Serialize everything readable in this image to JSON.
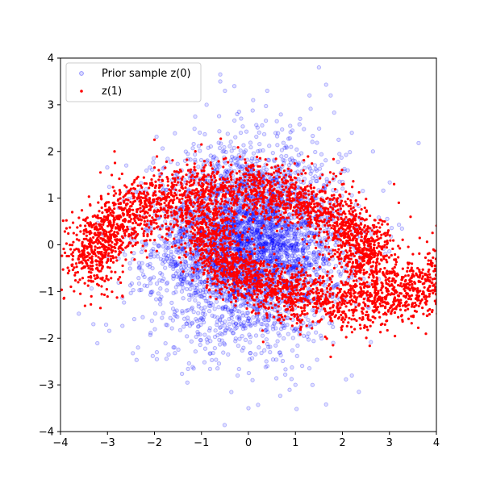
{
  "chart_data": {
    "type": "scatter",
    "title": "",
    "xlabel": "",
    "ylabel": "",
    "xlim": [
      -4,
      4
    ],
    "ylim": [
      -4,
      4
    ],
    "xticks": [
      -4,
      -3,
      -2,
      -1,
      0,
      1,
      2,
      3,
      4
    ],
    "yticks": [
      -4,
      -3,
      -2,
      -1,
      0,
      1,
      2,
      3,
      4
    ],
    "grid": false,
    "legend_position": "upper-left",
    "series": [
      {
        "name": "Prior sample z(0)",
        "color": "#0000ff",
        "marker": "hollow-circle",
        "distribution": "2D standard normal, approx 5000 points, centered at (0, 0)",
        "points": [
          [
            -1.95,
            -2.3
          ],
          [
            -2.6,
            1.7
          ],
          [
            -3.3,
            -1.7
          ],
          [
            1.5,
            3.8
          ],
          [
            -0.6,
            3.65
          ],
          [
            -0.6,
            3.5
          ],
          [
            0.1,
            3.1
          ],
          [
            0.4,
            3.3
          ],
          [
            1.3,
            3.2
          ],
          [
            1.75,
            3.2
          ],
          [
            0.0,
            -3.5
          ],
          [
            2.2,
            -2.8
          ],
          [
            2.35,
            -3.15
          ],
          [
            1.0,
            -3.0
          ],
          [
            -1.3,
            -2.95
          ],
          [
            -1.7,
            -2.35
          ],
          [
            2.2,
            2.4
          ],
          [
            2.65,
            2.0
          ],
          [
            -0.2,
            2.85
          ],
          [
            -0.3,
            3.4
          ],
          [
            -0.5,
            3.3
          ],
          [
            -2.35,
            -2.2
          ],
          [
            -1.95,
            -2.45
          ],
          [
            -2.25,
            -1.55
          ],
          [
            1.1,
            2.7
          ]
        ]
      },
      {
        "name": "z(1)",
        "color": "#ff0000",
        "marker": "filled-circle",
        "distribution": "two-moons shape, approx 5000 points",
        "points": [
          [
            -3.75,
            0.7
          ],
          [
            -3.6,
            -0.15
          ],
          [
            -3.5,
            0.3
          ],
          [
            -3.15,
            1.55
          ],
          [
            -2.85,
            2.0
          ],
          [
            -2.5,
            1.2
          ],
          [
            -2.0,
            2.25
          ],
          [
            -1.0,
            2.15
          ],
          [
            -0.5,
            1.4
          ],
          [
            0.0,
            1.5
          ],
          [
            0.6,
            0.6
          ],
          [
            1.0,
            -1.3
          ],
          [
            1.5,
            -1.2
          ],
          [
            2.0,
            -1.2
          ],
          [
            2.5,
            -0.6
          ],
          [
            2.9,
            0.5
          ],
          [
            3.2,
            0.9
          ],
          [
            3.45,
            0.6
          ],
          [
            3.6,
            -0.5
          ],
          [
            3.5,
            -0.2
          ],
          [
            1.75,
            -2.4
          ],
          [
            1.8,
            -2.15
          ],
          [
            -0.95,
            -0.6
          ],
          [
            -0.5,
            -0.9
          ],
          [
            0.5,
            -1.1
          ],
          [
            -1.25,
            0.5
          ],
          [
            -1.7,
            1.1
          ],
          [
            -0.8,
            1.7
          ],
          [
            -0.05,
            1.2
          ],
          [
            0.15,
            0.9
          ],
          [
            2.4,
            -1.0
          ],
          [
            1.0,
            -1.05
          ],
          [
            2.55,
            -1.5
          ],
          [
            3.1,
            1.3
          ],
          [
            -3.4,
            -0.5
          ]
        ]
      }
    ]
  }
}
